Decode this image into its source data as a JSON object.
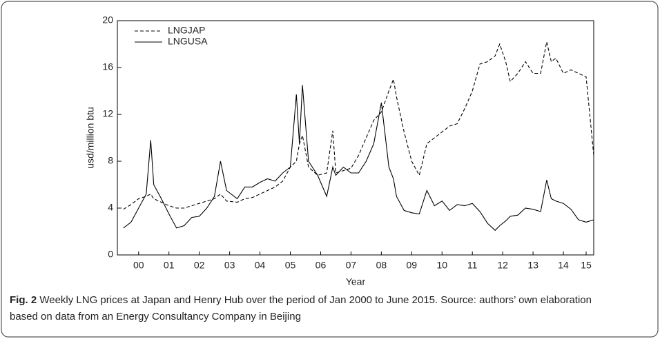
{
  "chart_data": {
    "type": "line",
    "ylabel": "usd/million btu",
    "xlabel": "Year",
    "xlim": [
      1999.8,
      2015.5
    ],
    "ylim": [
      0,
      20
    ],
    "yticks": [
      0,
      4,
      8,
      12,
      16,
      20
    ],
    "xticks": [
      {
        "value": 2000.5,
        "label": "00"
      },
      {
        "value": 2001.5,
        "label": "01"
      },
      {
        "value": 2002.5,
        "label": "02"
      },
      {
        "value": 2003.5,
        "label": "03"
      },
      {
        "value": 2004.5,
        "label": "04"
      },
      {
        "value": 2005.5,
        "label": "05"
      },
      {
        "value": 2006.5,
        "label": "06"
      },
      {
        "value": 2007.5,
        "label": "07"
      },
      {
        "value": 2008.5,
        "label": "08"
      },
      {
        "value": 2009.5,
        "label": "09"
      },
      {
        "value": 2010.5,
        "label": "10"
      },
      {
        "value": 2011.5,
        "label": "11"
      },
      {
        "value": 2012.5,
        "label": "12"
      },
      {
        "value": 2013.5,
        "label": "13"
      },
      {
        "value": 2014.5,
        "label": "14"
      },
      {
        "value": 2015.25,
        "label": "15"
      }
    ],
    "legend": "top-left",
    "x": [
      2000.0,
      2000.25,
      2000.5,
      2000.75,
      2000.9,
      2001.0,
      2001.25,
      2001.5,
      2001.75,
      2002.0,
      2002.25,
      2002.5,
      2002.75,
      2003.0,
      2003.2,
      2003.4,
      2003.75,
      2004.0,
      2004.25,
      2004.5,
      2004.75,
      2005.0,
      2005.25,
      2005.5,
      2005.7,
      2005.8,
      2005.9,
      2006.1,
      2006.4,
      2006.7,
      2006.9,
      2007.0,
      2007.25,
      2007.5,
      2007.75,
      2008.0,
      2008.25,
      2008.5,
      2008.75,
      2008.9,
      2009.0,
      2009.25,
      2009.5,
      2009.75,
      2010.0,
      2010.25,
      2010.5,
      2010.75,
      2011.0,
      2011.25,
      2011.5,
      2011.75,
      2012.0,
      2012.25,
      2012.4,
      2012.6,
      2012.75,
      2013.0,
      2013.25,
      2013.5,
      2013.75,
      2013.95,
      2014.1,
      2014.25,
      2014.5,
      2014.75,
      2015.0,
      2015.25,
      2015.5
    ],
    "series": [
      {
        "name": "LNGJAP",
        "color": "#000000",
        "line_style": "dashed",
        "values": [
          3.9,
          4.3,
          4.8,
          5.0,
          5.2,
          4.8,
          4.5,
          4.2,
          4.0,
          4.0,
          4.2,
          4.4,
          4.6,
          4.8,
          5.2,
          4.6,
          4.5,
          4.8,
          4.9,
          5.2,
          5.5,
          5.8,
          6.3,
          7.5,
          8.0,
          9.5,
          10.2,
          7.5,
          6.8,
          7.0,
          10.6,
          7.0,
          7.2,
          7.4,
          8.5,
          10.0,
          11.5,
          12.2,
          14.0,
          15.0,
          13.5,
          10.5,
          8.0,
          6.8,
          9.5,
          10.0,
          10.5,
          11.0,
          11.2,
          12.5,
          14.0,
          16.3,
          16.5,
          17.0,
          18.0,
          16.5,
          14.8,
          15.5,
          16.5,
          15.5,
          15.5,
          18.2,
          16.5,
          16.8,
          15.5,
          15.8,
          15.5,
          15.2,
          8.5
        ]
      },
      {
        "name": "LNGUSA",
        "color": "#000000",
        "line_style": "solid",
        "values": [
          2.3,
          2.8,
          4.0,
          5.2,
          9.8,
          6.0,
          4.8,
          3.5,
          2.3,
          2.5,
          3.2,
          3.3,
          4.0,
          5.0,
          8.0,
          5.5,
          4.8,
          5.8,
          5.8,
          6.2,
          6.5,
          6.3,
          7.0,
          7.5,
          13.7,
          9.5,
          14.5,
          8.0,
          6.8,
          5.0,
          7.5,
          6.8,
          7.5,
          7.0,
          7.0,
          8.0,
          9.5,
          13.0,
          7.5,
          6.5,
          5.0,
          3.8,
          3.6,
          3.5,
          5.5,
          4.2,
          4.6,
          3.8,
          4.3,
          4.2,
          4.4,
          3.7,
          2.7,
          2.1,
          2.5,
          2.9,
          3.3,
          3.4,
          4.0,
          3.9,
          3.7,
          6.4,
          4.8,
          4.6,
          4.4,
          3.9,
          3.0,
          2.8,
          3.0
        ]
      }
    ]
  },
  "caption": {
    "label": "Fig. 2",
    "text": "Weekly LNG prices at Japan and Henry Hub over the period of Jan 2000 to June 2015. Source: authors’ own elaboration based on data from an Energy Consultancy Company in Beijing"
  }
}
